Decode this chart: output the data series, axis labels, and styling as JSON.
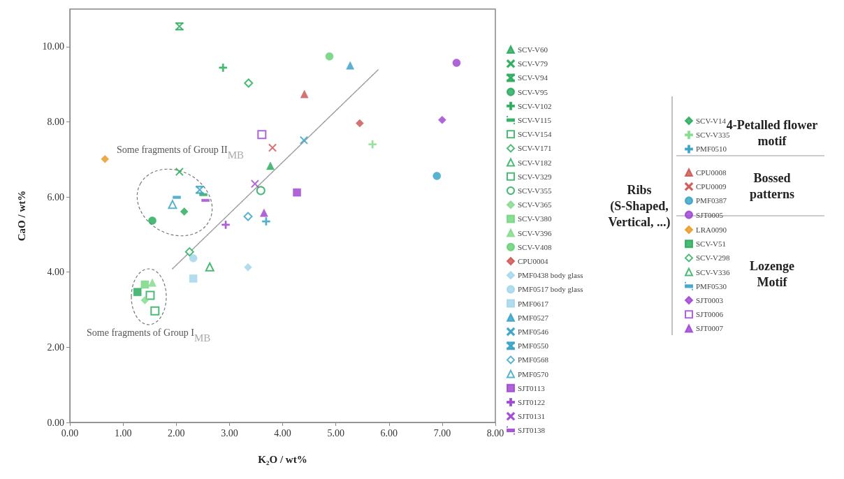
{
  "chart_data": {
    "type": "scatter",
    "xlabel": "K₂O / wt%",
    "ylabel": "CaO / wt%",
    "xlim": [
      0,
      8
    ],
    "ylim": [
      0,
      11
    ],
    "xticks": [
      {
        "value": 0,
        "label": "0.00"
      },
      {
        "value": 1,
        "label": "1.00"
      },
      {
        "value": 2,
        "label": "2.00"
      },
      {
        "value": 3,
        "label": "3.00"
      },
      {
        "value": 4,
        "label": "4.00"
      },
      {
        "value": 5,
        "label": "5.00"
      },
      {
        "value": 6,
        "label": "6.00"
      },
      {
        "value": 7,
        "label": "7.00"
      },
      {
        "value": 8,
        "label": "8.00"
      }
    ],
    "yticks": [
      {
        "value": 0,
        "label": "0.00"
      },
      {
        "value": 2,
        "label": "2.00"
      },
      {
        "value": 4,
        "label": "4.00"
      },
      {
        "value": 6,
        "label": "6.00"
      },
      {
        "value": 8,
        "label": "8.00"
      },
      {
        "value": 10,
        "label": "10.00"
      }
    ],
    "grid": false,
    "legend": "right",
    "annotations": [
      "Some fragments of Group II$_{MB}$",
      "Some fragments of Group I$_{MB}$",
      "Ribs\n(S-Shaped,\nVertical, ...)",
      "4-Petalled flower\nmotif",
      "Bossed\npatterns",
      "Lozenge\nMotif"
    ],
    "series": [
      {
        "name": "SCV-V60",
        "color": "#1fa855",
        "marker": "triangle",
        "x": [
          3.77
        ],
        "values": [
          6.83
        ]
      },
      {
        "name": "SCV-V79",
        "color": "#1fa855",
        "marker": "cross",
        "x": [
          2.06
        ],
        "values": [
          6.67
        ]
      },
      {
        "name": "SCV-V94",
        "color": "#1fa855",
        "marker": "star",
        "x": [
          2.06
        ],
        "values": [
          10.54
        ]
      },
      {
        "name": "SCV-V95",
        "color": "#1fa855",
        "marker": "circle",
        "x": [
          1.55
        ],
        "values": [
          5.37
        ]
      },
      {
        "name": "SCV-V102",
        "color": "#1fa855",
        "marker": "plus",
        "x": [
          2.88
        ],
        "values": [
          9.44
        ]
      },
      {
        "name": "SCV-V115",
        "color": "#1fa855",
        "x": [
          2.51
        ],
        "values": [
          6.06
        ]
      },
      {
        "name": "SCV-V154",
        "color": "#1fa855",
        "marker": "square-open",
        "x": [
          1.51
        ],
        "values": [
          3.38
        ]
      },
      {
        "name": "SCV-V171",
        "color": "#1fa855",
        "marker": "diamond-open",
        "x": [
          3.36
        ],
        "values": [
          9.03
        ]
      },
      {
        "name": "SCV-V182",
        "color": "#1fa855",
        "marker": "triangle-open",
        "x": [
          null
        ],
        "values": [
          null
        ]
      },
      {
        "name": "SCV-V329",
        "color": "#1fa855",
        "marker": "square-open",
        "x": [
          1.6
        ],
        "values": [
          2.97
        ]
      },
      {
        "name": "SCV-V355",
        "color": "#1fa855",
        "marker": "circle-open",
        "x": [
          3.59
        ],
        "values": [
          6.17
        ]
      },
      {
        "name": "SCV-V365",
        "color": "#7fd98a",
        "marker": "diamond",
        "x": [
          1.41
        ],
        "values": [
          3.25
        ]
      },
      {
        "name": "SCV-V380",
        "color": "#6fd47a",
        "marker": "square",
        "x": [
          1.41
        ],
        "values": [
          3.67
        ]
      },
      {
        "name": "SCV-V396",
        "color": "#7fd98a",
        "marker": "triangle",
        "x": [
          1.55
        ],
        "values": [
          3.72
        ]
      },
      {
        "name": "SCV-V408",
        "color": "#5fcf6f",
        "marker": "circle",
        "x": [
          4.88
        ],
        "values": [
          9.74
        ]
      },
      {
        "name": "CPU0004",
        "color": "#c9504e",
        "marker": "diamond",
        "x": [
          5.45
        ],
        "values": [
          7.96
        ]
      },
      {
        "name": "PMF0438 body glass",
        "color": "#9fd5ea",
        "marker": "diamond",
        "x": [
          3.35
        ],
        "values": [
          4.13
        ]
      },
      {
        "name": "PMF0517 body glass",
        "color": "#9fd5ea",
        "marker": "circle",
        "x": [
          2.32
        ],
        "values": [
          4.37
        ]
      },
      {
        "name": "PMF0617",
        "color": "#9fd5ea",
        "marker": "square",
        "x": [
          2.32
        ],
        "values": [
          3.83
        ]
      },
      {
        "name": "PMF0527",
        "color": "#2f9fc3",
        "marker": "triangle",
        "x": [
          5.27
        ],
        "values": [
          9.5
        ]
      },
      {
        "name": "PMF0546",
        "color": "#2f9fc3",
        "marker": "cross",
        "x": [
          4.4
        ],
        "values": [
          7.51
        ]
      },
      {
        "name": "PMF0550",
        "color": "#2f9fc3",
        "marker": "star",
        "x": [
          2.44
        ],
        "values": [
          6.19
        ]
      },
      {
        "name": "PMF0568",
        "color": "#2f9fc3",
        "marker": "diamond-open",
        "x": [
          3.35
        ],
        "values": [
          5.48
        ]
      },
      {
        "name": "PMF0570",
        "color": "#2f9fc3",
        "marker": "triangle-open",
        "x": [
          1.93
        ],
        "values": [
          5.8
        ]
      },
      {
        "name": "SJT0113",
        "color": "#9b3fcf",
        "marker": "square",
        "x": [
          4.27
        ],
        "values": [
          6.12
        ]
      },
      {
        "name": "SJT0122",
        "color": "#9b3fcf",
        "marker": "plus",
        "x": [
          2.93
        ],
        "values": [
          5.26
        ]
      },
      {
        "name": "SJT0131",
        "color": "#9b3fcf",
        "marker": "cross",
        "x": [
          3.48
        ],
        "values": [
          6.35
        ]
      },
      {
        "name": "SJT0138",
        "color": "#9b3fcf",
        "x": [
          2.55
        ],
        "values": [
          5.91
        ]
      },
      {
        "name": "SCV-V14",
        "color": "#1fa855",
        "marker": "diamond",
        "x": [
          2.15
        ],
        "values": [
          5.61
        ]
      },
      {
        "name": "SCV-V335",
        "color": "#7fd98a",
        "marker": "plus",
        "x": [
          5.69
        ],
        "values": [
          7.4
        ]
      },
      {
        "name": "PMF0510",
        "color": "#2f9fc3",
        "marker": "plus",
        "x": [
          3.69
        ],
        "values": [
          5.35
        ]
      },
      {
        "name": "CPU0008",
        "color": "#c9504e",
        "marker": "triangle",
        "x": [
          4.41
        ],
        "values": [
          8.74
        ]
      },
      {
        "name": "CPU0009",
        "color": "#c9504e",
        "marker": "cross",
        "x": [
          3.81
        ],
        "values": [
          7.31
        ]
      },
      {
        "name": "PMF0387",
        "color": "#2f9fc3",
        "marker": "circle",
        "x": [
          6.9
        ],
        "values": [
          6.56
        ]
      },
      {
        "name": "SJT0005",
        "color": "#9b3fcf",
        "marker": "circle",
        "x": [
          7.27
        ],
        "values": [
          9.57
        ]
      },
      {
        "name": "LRA0090",
        "color": "#e8951c",
        "marker": "diamond",
        "x": [
          0.66
        ],
        "values": [
          7.01
        ]
      },
      {
        "name": "SCV-V51",
        "color": "#1fa855",
        "marker": "square",
        "x": [
          1.27
        ],
        "values": [
          3.47
        ]
      },
      {
        "name": "SCV-V298",
        "color": "#1fa855",
        "marker": "diamond-open",
        "x": [
          2.25
        ],
        "values": [
          4.54
        ]
      },
      {
        "name": "SCV-V336",
        "color": "#1fa855",
        "marker": "triangle-open",
        "x": [
          2.63
        ],
        "values": [
          4.14
        ]
      },
      {
        "name": "PMF0530",
        "color": "#2f9fc3",
        "x": [
          2.01
        ],
        "values": [
          5.99
        ]
      },
      {
        "name": "SJT0003",
        "color": "#9b3fcf",
        "marker": "diamond",
        "x": [
          7.0
        ],
        "values": [
          8.05
        ]
      },
      {
        "name": "SJT0006",
        "color": "#9b3fcf",
        "marker": "square-open",
        "x": [
          3.61
        ],
        "values": [
          7.66
        ]
      },
      {
        "name": "SJT0007",
        "color": "#9b3fcf",
        "marker": "triangle",
        "x": [
          3.65
        ],
        "values": [
          5.58
        ]
      },
      {
        "type": "line",
        "color": "#999999",
        "marker": "none",
        "line_style": "dotted",
        "x": [
          1.93,
          5.8
        ],
        "values": [
          4.09,
          9.39
        ]
      }
    ]
  }
}
